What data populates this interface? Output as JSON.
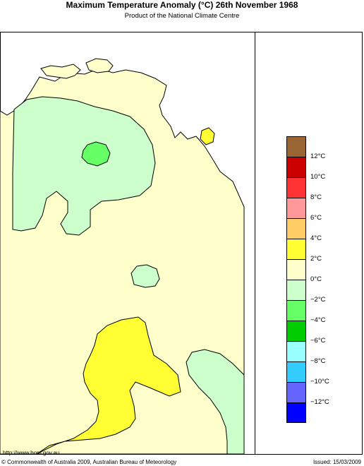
{
  "header": {
    "title": "Maximum Temperature Anomaly (°C)  26th November 1968",
    "subtitle": "Product of the National Climate Centre"
  },
  "legend": {
    "swatches": [
      {
        "color": "#996633"
      },
      {
        "color": "#cc0000"
      },
      {
        "color": "#ff3333"
      },
      {
        "color": "#ff9999"
      },
      {
        "color": "#ffcc66"
      },
      {
        "color": "#ffff33"
      },
      {
        "color": "#ffffcc"
      },
      {
        "color": "#ccffcc"
      },
      {
        "color": "#66ff66"
      },
      {
        "color": "#00cc00"
      },
      {
        "color": "#99ffff"
      },
      {
        "color": "#33ccff"
      },
      {
        "color": "#6666ff"
      },
      {
        "color": "#0000ff"
      }
    ],
    "ticks": [
      "12°C",
      "10°C",
      "8°C",
      "6°C",
      "4°C",
      "2°C",
      "0°C",
      "−2°C",
      "−4°C",
      "−6°C",
      "−8°C",
      "−10°C",
      "−12°C"
    ]
  },
  "map": {
    "colors": {
      "background": "#ffffff",
      "base": "#ffffcc",
      "cool": "#ccffcc",
      "cooler": "#66ff66",
      "warm": "#ffff33",
      "outline": "#000000"
    }
  },
  "footer": {
    "url": "http://www.bom.gov.au",
    "copyright": "© Commonwealth of Australia 2009, Australian Bureau of Meteorology",
    "issued": "Issued: 15/03/2009"
  }
}
